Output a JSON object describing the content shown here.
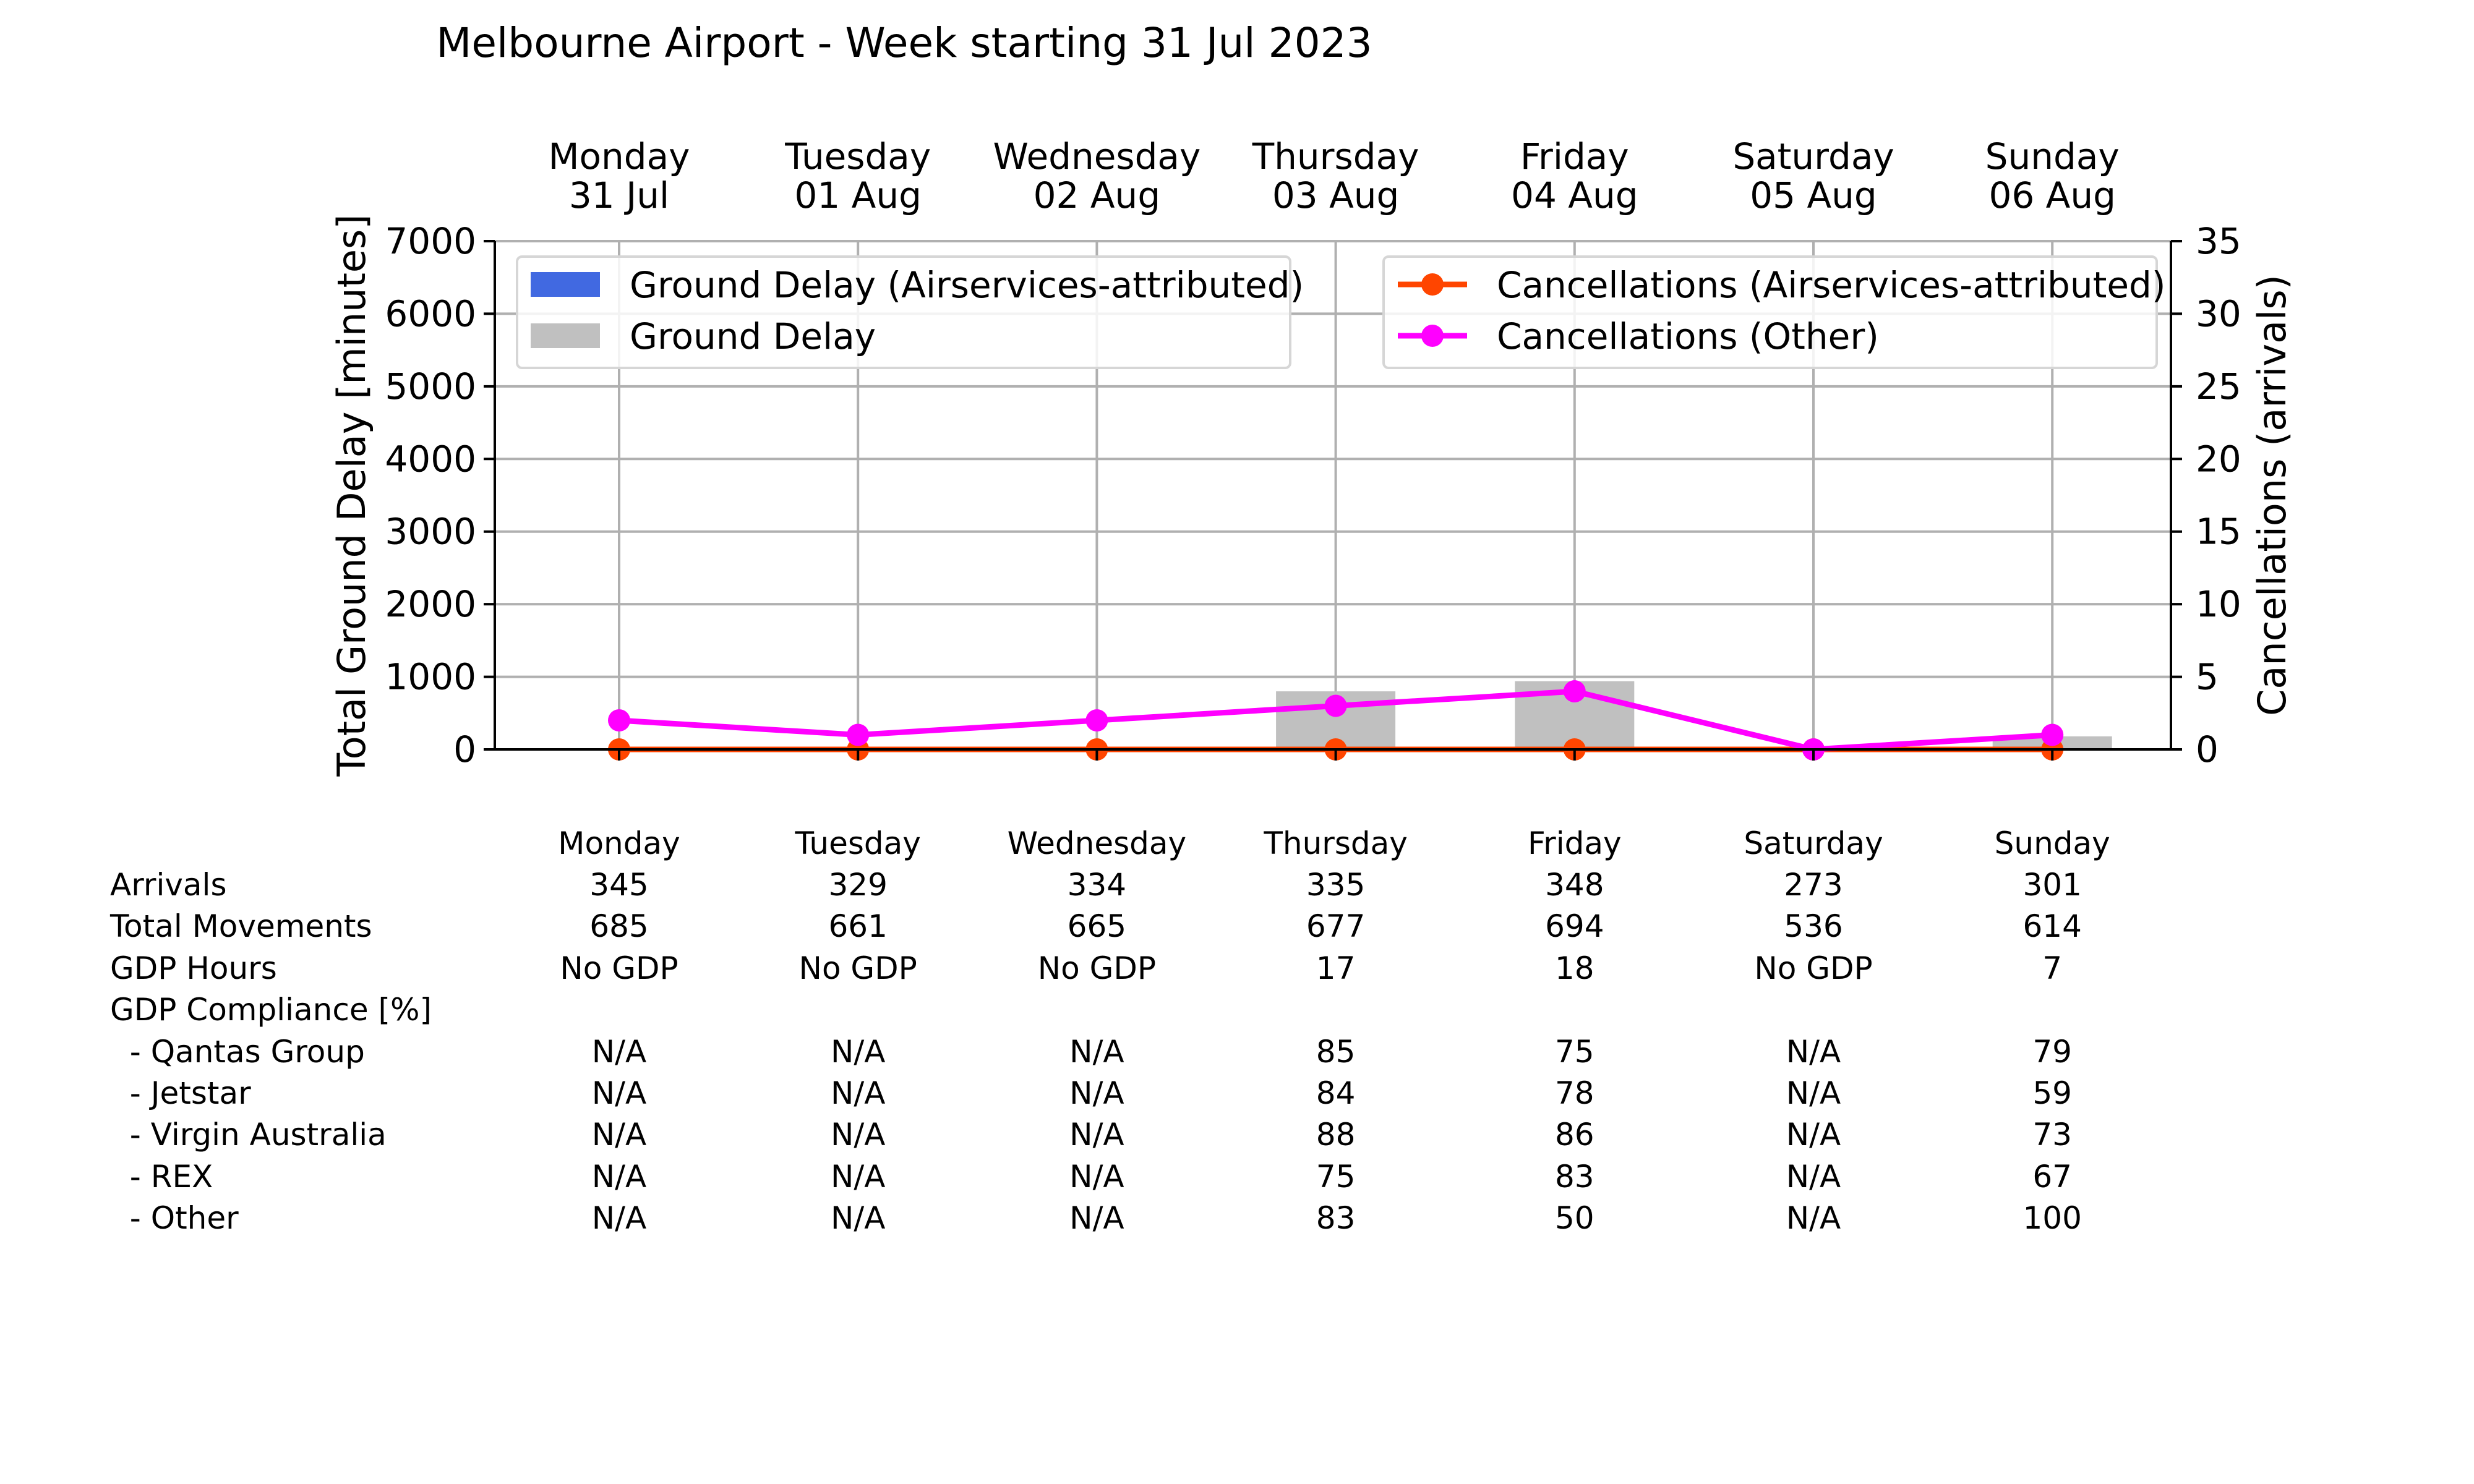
{
  "title": "Melbourne Airport - Week starting 31 Jul 2023",
  "chart_data": {
    "type": "bar",
    "title": "Melbourne Airport - Week starting 31 Jul 2023",
    "categories": [
      {
        "day": "Monday",
        "date": "31 Jul"
      },
      {
        "day": "Tuesday",
        "date": "01 Aug"
      },
      {
        "day": "Wednesday",
        "date": "02 Aug"
      },
      {
        "day": "Thursday",
        "date": "03 Aug"
      },
      {
        "day": "Friday",
        "date": "04 Aug"
      },
      {
        "day": "Saturday",
        "date": "05 Aug"
      },
      {
        "day": "Sunday",
        "date": "06 Aug"
      }
    ],
    "ylabel_left": "Total Ground Delay [minutes]",
    "ylabel_right": "Cancellations (arrivals)",
    "ylim_left": [
      0,
      7000
    ],
    "yticks_left": [
      "0",
      "1000",
      "2000",
      "3000",
      "4000",
      "5000",
      "6000",
      "7000"
    ],
    "ylim_right": [
      0,
      35
    ],
    "yticks_right": [
      "0",
      "5",
      "10",
      "15",
      "20",
      "25",
      "30",
      "35"
    ],
    "grid": true,
    "legend_left_position": "top-left",
    "legend_right_position": "top-right",
    "bar_series": [
      {
        "name": "Ground Delay (Airservices-attributed)",
        "color": "#4169e1",
        "values": [
          0,
          0,
          0,
          0,
          0,
          0,
          0
        ]
      },
      {
        "name": "Ground Delay",
        "color": "#c0c0c0",
        "values": [
          0,
          0,
          0,
          800,
          940,
          0,
          180
        ]
      }
    ],
    "line_series": [
      {
        "name": "Cancellations (Airservices-attributed)",
        "color": "#ff4500",
        "values": [
          0,
          0,
          0,
          0,
          0,
          0,
          0
        ]
      },
      {
        "name": "Cancellations (Other)",
        "color": "#ff00ff",
        "values": [
          2,
          1,
          2,
          3,
          4,
          0,
          1
        ]
      }
    ]
  },
  "table": {
    "days": [
      "Monday",
      "Tuesday",
      "Wednesday",
      "Thursday",
      "Friday",
      "Saturday",
      "Sunday"
    ],
    "rows": [
      {
        "label": "Arrivals",
        "values": [
          "345",
          "329",
          "334",
          "335",
          "348",
          "273",
          "301"
        ]
      },
      {
        "label": "Total Movements",
        "values": [
          "685",
          "661",
          "665",
          "677",
          "694",
          "536",
          "614"
        ]
      },
      {
        "label": "GDP Hours",
        "values": [
          "No GDP",
          "No GDP",
          "No GDP",
          "17",
          "18",
          "No GDP",
          "7"
        ]
      },
      {
        "label": "GDP Compliance [%]",
        "values": [
          "",
          "",
          "",
          "",
          "",
          "",
          ""
        ]
      },
      {
        "label": "  - Qantas Group",
        "values": [
          "N/A",
          "N/A",
          "N/A",
          "85",
          "75",
          "N/A",
          "79"
        ]
      },
      {
        "label": "  - Jetstar",
        "values": [
          "N/A",
          "N/A",
          "N/A",
          "84",
          "78",
          "N/A",
          "59"
        ]
      },
      {
        "label": "  - Virgin Australia",
        "values": [
          "N/A",
          "N/A",
          "N/A",
          "88",
          "86",
          "N/A",
          "73"
        ]
      },
      {
        "label": "  - REX",
        "values": [
          "N/A",
          "N/A",
          "N/A",
          "75",
          "83",
          "N/A",
          "67"
        ]
      },
      {
        "label": "  - Other",
        "values": [
          "N/A",
          "N/A",
          "N/A",
          "83",
          "50",
          "N/A",
          "100"
        ]
      }
    ]
  }
}
